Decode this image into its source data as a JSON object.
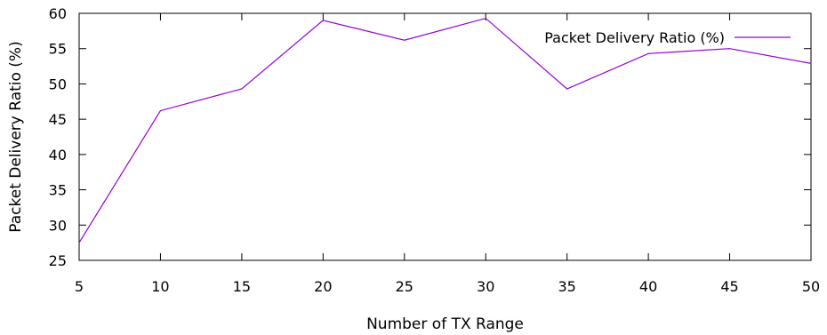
{
  "chart_data": {
    "type": "line",
    "title": "",
    "xlabel": "Number of TX Range",
    "ylabel": "Packet Delivery Ratio (%)",
    "xlim": [
      5,
      50
    ],
    "ylim": [
      25,
      60
    ],
    "xticks": [
      5,
      10,
      15,
      20,
      25,
      30,
      35,
      40,
      45,
      50
    ],
    "yticks": [
      25,
      30,
      35,
      40,
      45,
      50,
      55,
      60
    ],
    "grid": false,
    "legend_position": "top-right",
    "series": [
      {
        "name": "Packet Delivery Ratio (%)",
        "color": "#9400d3",
        "x": [
          5,
          10,
          15,
          20,
          25,
          30,
          35,
          40,
          45,
          50
        ],
        "y": [
          27.5,
          46.2,
          49.3,
          59.0,
          56.2,
          59.3,
          49.3,
          54.3,
          55.0,
          52.9
        ]
      }
    ]
  }
}
